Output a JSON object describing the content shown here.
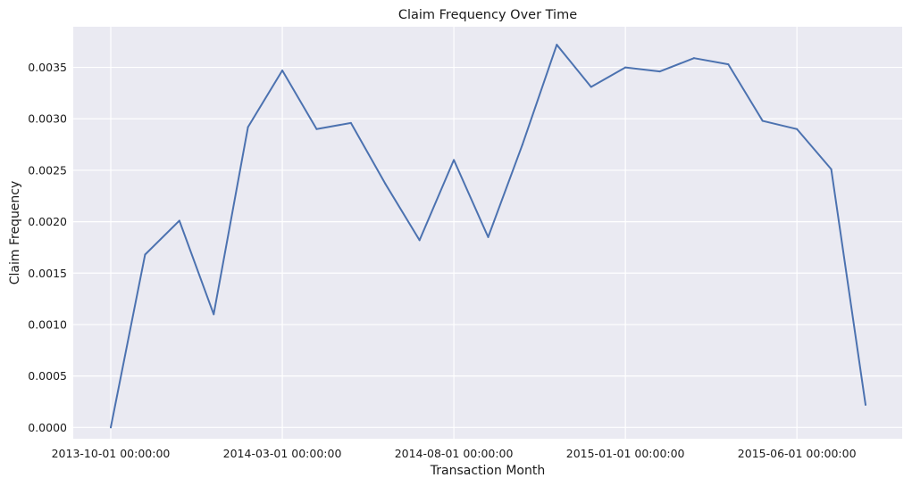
{
  "chart_data": {
    "type": "line",
    "title": "Claim Frequency Over Time",
    "xlabel": "Transaction Month",
    "ylabel": "Claim Frequency",
    "x": [
      "2013-10-01",
      "2013-11-01",
      "2013-12-01",
      "2014-01-01",
      "2014-02-01",
      "2014-03-01",
      "2014-04-01",
      "2014-05-01",
      "2014-06-01",
      "2014-07-01",
      "2014-08-01",
      "2014-09-01",
      "2014-10-01",
      "2014-11-01",
      "2014-12-01",
      "2015-01-01",
      "2015-02-01",
      "2015-03-01",
      "2015-04-01",
      "2015-05-01",
      "2015-06-01",
      "2015-07-01",
      "2015-08-01"
    ],
    "series": [
      {
        "values": [
          0.0,
          0.00168,
          0.00201,
          0.0011,
          0.00292,
          0.00347,
          0.0029,
          0.00296,
          0.00237,
          0.00182,
          0.0026,
          0.00185,
          0.00275,
          0.00372,
          0.00331,
          0.0035,
          0.00346,
          0.00359,
          0.00353,
          0.00298,
          0.0029,
          0.00251,
          0.00022
        ],
        "color": "#4c72b0"
      }
    ],
    "xticks": [
      {
        "index": 0,
        "label": "2013-10-01 00:00:00"
      },
      {
        "index": 5,
        "label": "2014-03-01 00:00:00"
      },
      {
        "index": 10,
        "label": "2014-08-01 00:00:00"
      },
      {
        "index": 15,
        "label": "2015-01-01 00:00:00"
      },
      {
        "index": 20,
        "label": "2015-06-01 00:00:00"
      }
    ],
    "yticks": [
      "0.0000",
      "0.0005",
      "0.0010",
      "0.0015",
      "0.0020",
      "0.0025",
      "0.0030",
      "0.0035"
    ],
    "ylim": [
      -0.00011,
      0.003895
    ],
    "grid": true,
    "background": "#eaeaf2",
    "grid_color": "#ffffff"
  }
}
